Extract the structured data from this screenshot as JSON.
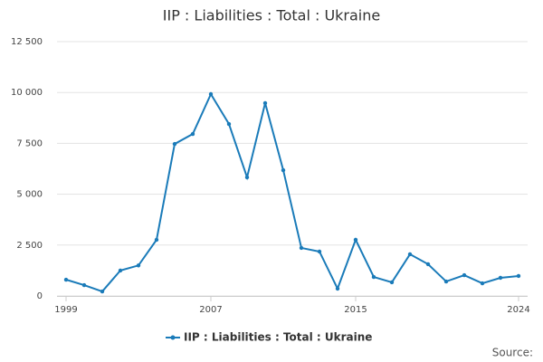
{
  "chart_data": {
    "type": "line",
    "title": "IIP : Liabilities : Total : Ukraine",
    "x": [
      1999,
      2000,
      2001,
      2002,
      2003,
      2004,
      2005,
      2006,
      2007,
      2008,
      2009,
      2010,
      2011,
      2012,
      2013,
      2014,
      2015,
      2016,
      2017,
      2018,
      2019,
      2020,
      2021,
      2022,
      2023,
      2024
    ],
    "series": [
      {
        "name": "IIP : Liabilities : Total : Ukraine",
        "color": "#1a7bb9",
        "values": [
          800,
          530,
          220,
          1250,
          1500,
          2760,
          7470,
          7960,
          9920,
          8450,
          5830,
          9480,
          6180,
          2360,
          2180,
          360,
          2760,
          930,
          670,
          2050,
          1560,
          710,
          1020,
          620,
          890,
          980
        ]
      }
    ],
    "xlim": [
      1998.5,
      2024.5
    ],
    "xticks": [
      1999,
      2007,
      2015,
      2024
    ],
    "ylim": [
      0,
      12500
    ],
    "yticks": [
      0,
      {
        "value": 2500,
        "label": "2 500"
      },
      {
        "value": 5000,
        "label": "5 000"
      },
      {
        "value": 7500,
        "label": "7 500"
      },
      {
        "value": 10000,
        "label": "10 000"
      },
      {
        "value": 12500,
        "label": "12 500"
      }
    ],
    "grid": true,
    "legend": "bottom",
    "source": "Source:"
  }
}
